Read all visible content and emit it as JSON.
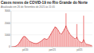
{
  "chart_data": {
    "type": "bar",
    "title": "Casos novos de COVID-19 no Rio Grande do Norte",
    "subtitle": "Atualizado em 26 de Setembro de 2021 às 11:05",
    "categories": [
      null,
      null,
      null,
      null,
      null,
      null,
      null,
      null,
      null,
      null,
      "jul/20",
      null,
      null,
      null,
      null,
      null,
      null,
      null,
      null,
      null,
      null,
      null,
      null,
      null,
      null,
      null,
      null,
      null,
      null,
      null,
      "jan/21",
      null,
      null,
      null,
      null,
      null,
      null,
      null,
      null,
      null,
      null,
      null,
      null,
      null,
      null,
      null,
      null,
      null,
      null,
      null,
      "jul/21",
      null,
      null,
      null,
      null,
      null,
      null,
      null,
      null,
      null
    ],
    "series": [
      {
        "type": "bar",
        "color": "#f4a6a6",
        "values": [
          0,
          5,
          20,
          60,
          120,
          250,
          400,
          600,
          800,
          900,
          850,
          700,
          550,
          450,
          400,
          350,
          300,
          280,
          260,
          300,
          350,
          420,
          500,
          600,
          700,
          650,
          600,
          700,
          900,
          1100,
          1300,
          1500,
          1700,
          1600,
          1400,
          1200,
          1000,
          1100,
          1300,
          1500,
          2800,
          1400,
          1200,
          1000,
          900,
          800,
          700,
          600,
          1900,
          500,
          400,
          350,
          300,
          2600,
          250,
          200,
          180,
          150,
          120,
          100
        ]
      },
      {
        "type": "line",
        "color": "#d62728",
        "values": [
          0,
          3,
          15,
          50,
          110,
          230,
          380,
          560,
          740,
          850,
          840,
          720,
          580,
          470,
          410,
          360,
          310,
          285,
          270,
          295,
          345,
          415,
          495,
          590,
          680,
          650,
          610,
          700,
          880,
          1080,
          1280,
          1470,
          1640,
          1580,
          1420,
          1230,
          1050,
          1100,
          1280,
          1480,
          1750,
          1450,
          1220,
          1030,
          920,
          820,
          720,
          640,
          800,
          560,
          430,
          370,
          320,
          600,
          300,
          220,
          190,
          160,
          125,
          105
        ]
      }
    ],
    "ylim": [
      0,
      3000
    ],
    "yticks": [
      0,
      1000,
      2000,
      3000
    ],
    "grid": true
  }
}
